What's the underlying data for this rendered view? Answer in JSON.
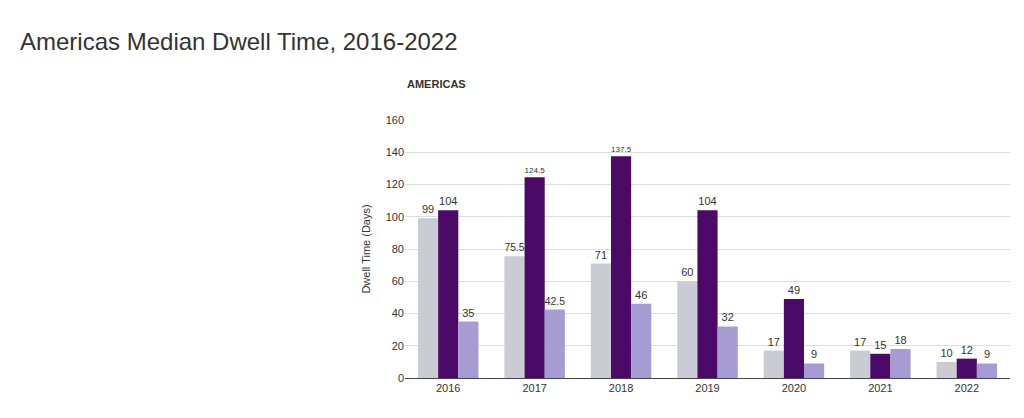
{
  "chart_data": {
    "type": "bar",
    "title": "Americas Median Dwell Time, 2016-2022",
    "subtitle": "AMERICAS",
    "y_label": "Dwell Time (Days)",
    "categories": [
      "2016",
      "2017",
      "2018",
      "2019",
      "2020",
      "2021",
      "2022"
    ],
    "series": [
      {
        "color": "#c9cdd3",
        "values": [
          99,
          75.5,
          71,
          60,
          17,
          17,
          10
        ]
      },
      {
        "color": "#4b0a68",
        "values": [
          104,
          124.5,
          137.5,
          104,
          49,
          15,
          12
        ]
      },
      {
        "color": "#a69bd2",
        "values": [
          35,
          42.5,
          46,
          32,
          9,
          18,
          9
        ]
      }
    ],
    "ylim": [
      0,
      160
    ],
    "yticks": [
      0,
      20,
      40,
      60,
      80,
      100,
      120,
      140,
      160
    ],
    "grid": true,
    "data_labels": true
  }
}
